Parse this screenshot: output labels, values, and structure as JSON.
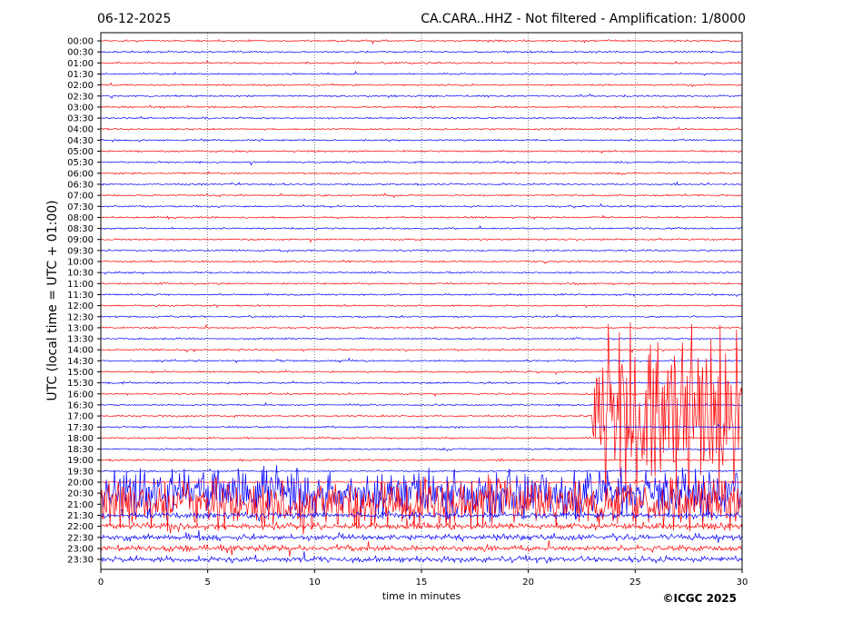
{
  "header": {
    "date": "06-12-2025",
    "station_title": "CA.CARA..HHZ - Not filtered - Amplification: 1/8000"
  },
  "footer": {
    "copyright": "©ICGC 2025"
  },
  "chart_data": {
    "type": "line",
    "title": "CA.CARA..HHZ - Not filtered - Amplification: 1/8000",
    "xlabel": "time in minutes",
    "ylabel": "UTC (local time = UTC + 01:00)",
    "xlim": [
      0,
      30
    ],
    "xticks": [
      0,
      5,
      10,
      15,
      20,
      25,
      30
    ],
    "grid": "vertical dotted lines at every 5 minutes",
    "trace_colors": [
      "#ff0000",
      "#0000ff"
    ],
    "row_labels": [
      "00:00",
      "00:30",
      "01:00",
      "01:30",
      "02:00",
      "02:30",
      "03:00",
      "03:30",
      "04:00",
      "04:30",
      "05:00",
      "05:30",
      "06:00",
      "06:30",
      "07:00",
      "07:30",
      "08:00",
      "08:30",
      "09:00",
      "09:30",
      "10:00",
      "10:30",
      "11:00",
      "11:30",
      "12:00",
      "12:30",
      "13:00",
      "13:30",
      "14:00",
      "14:30",
      "15:00",
      "15:30",
      "16:00",
      "16:30",
      "17:00",
      "17:30",
      "18:00",
      "18:30",
      "19:00",
      "19:30",
      "20:00",
      "20:30",
      "21:00",
      "21:30",
      "22:00",
      "22:30",
      "23:00",
      "23:30"
    ],
    "events": [
      {
        "row": "17:00",
        "start_min": 23,
        "end_min": 30,
        "note": "large-amplitude signal"
      },
      {
        "row": "20:30",
        "start_min": 0,
        "end_min": 30,
        "note": "large-amplitude signal"
      },
      {
        "row": "21:00",
        "start_min": 0,
        "end_min": 30,
        "note": "large-amplitude signal"
      }
    ]
  }
}
